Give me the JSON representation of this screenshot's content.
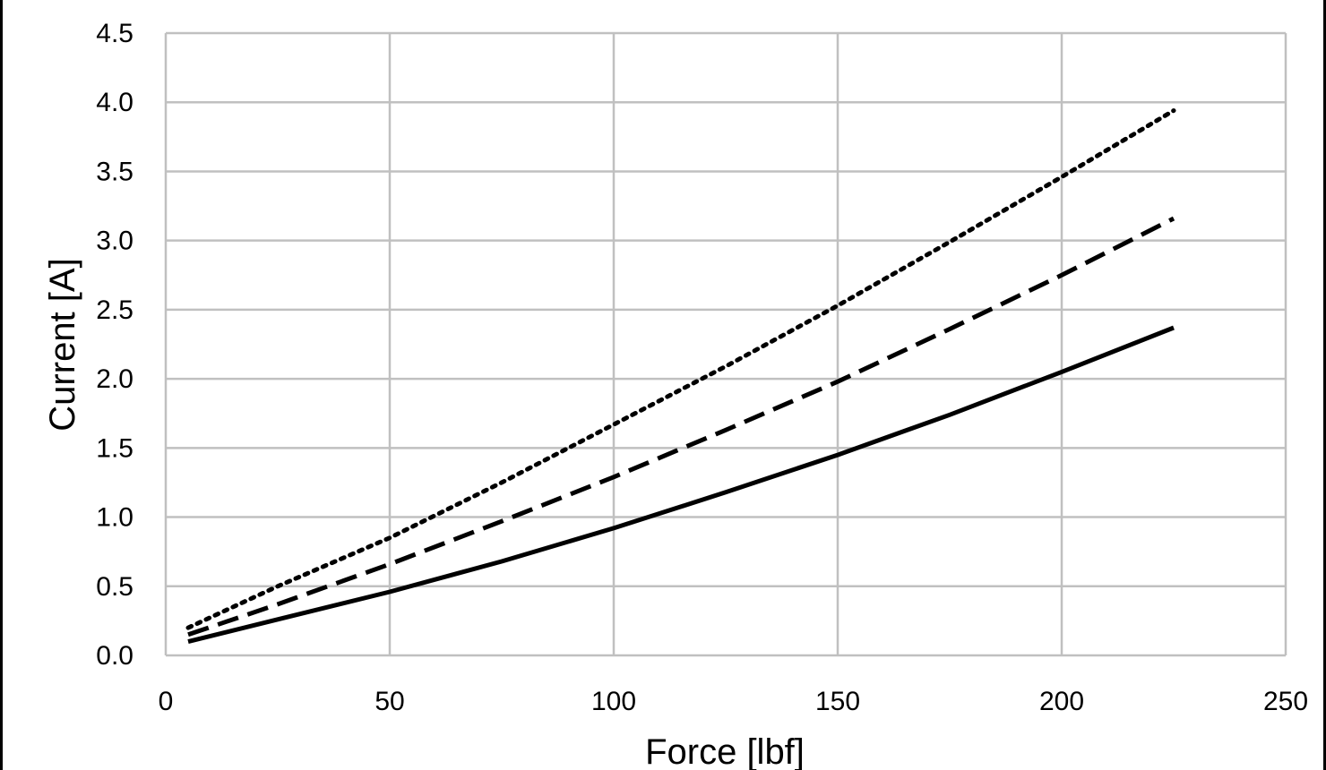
{
  "chart_data": {
    "type": "line",
    "title": "",
    "xlabel": "Force [lbf]",
    "ylabel": "Current [A]",
    "xlim": [
      0,
      250
    ],
    "ylim": [
      0,
      4.5
    ],
    "x_ticks": [
      "0",
      "50",
      "100",
      "150",
      "200",
      "250"
    ],
    "y_ticks": [
      "0.0",
      "0.5",
      "1.0",
      "1.5",
      "2.0",
      "2.5",
      "3.0",
      "3.5",
      "4.0",
      "4.5"
    ],
    "grid": true,
    "legend": "none",
    "x": [
      5,
      25,
      50,
      75,
      100,
      125,
      150,
      175,
      200,
      225
    ],
    "series": [
      {
        "style": "dotted",
        "color": "#000000",
        "values": [
          0.2,
          0.5,
          0.85,
          1.25,
          1.67,
          2.09,
          2.53,
          2.99,
          3.46,
          3.94
        ]
      },
      {
        "style": "dashed",
        "color": "#000000",
        "values": [
          0.15,
          0.37,
          0.66,
          0.97,
          1.29,
          1.63,
          1.98,
          2.36,
          2.75,
          3.16
        ]
      },
      {
        "style": "solid",
        "color": "#000000",
        "values": [
          0.1,
          0.26,
          0.46,
          0.68,
          0.92,
          1.18,
          1.45,
          1.74,
          2.05,
          2.37
        ]
      }
    ],
    "colors": {
      "grid": "#c0c0c0",
      "line": "#000000",
      "background": "#ffffff"
    }
  }
}
